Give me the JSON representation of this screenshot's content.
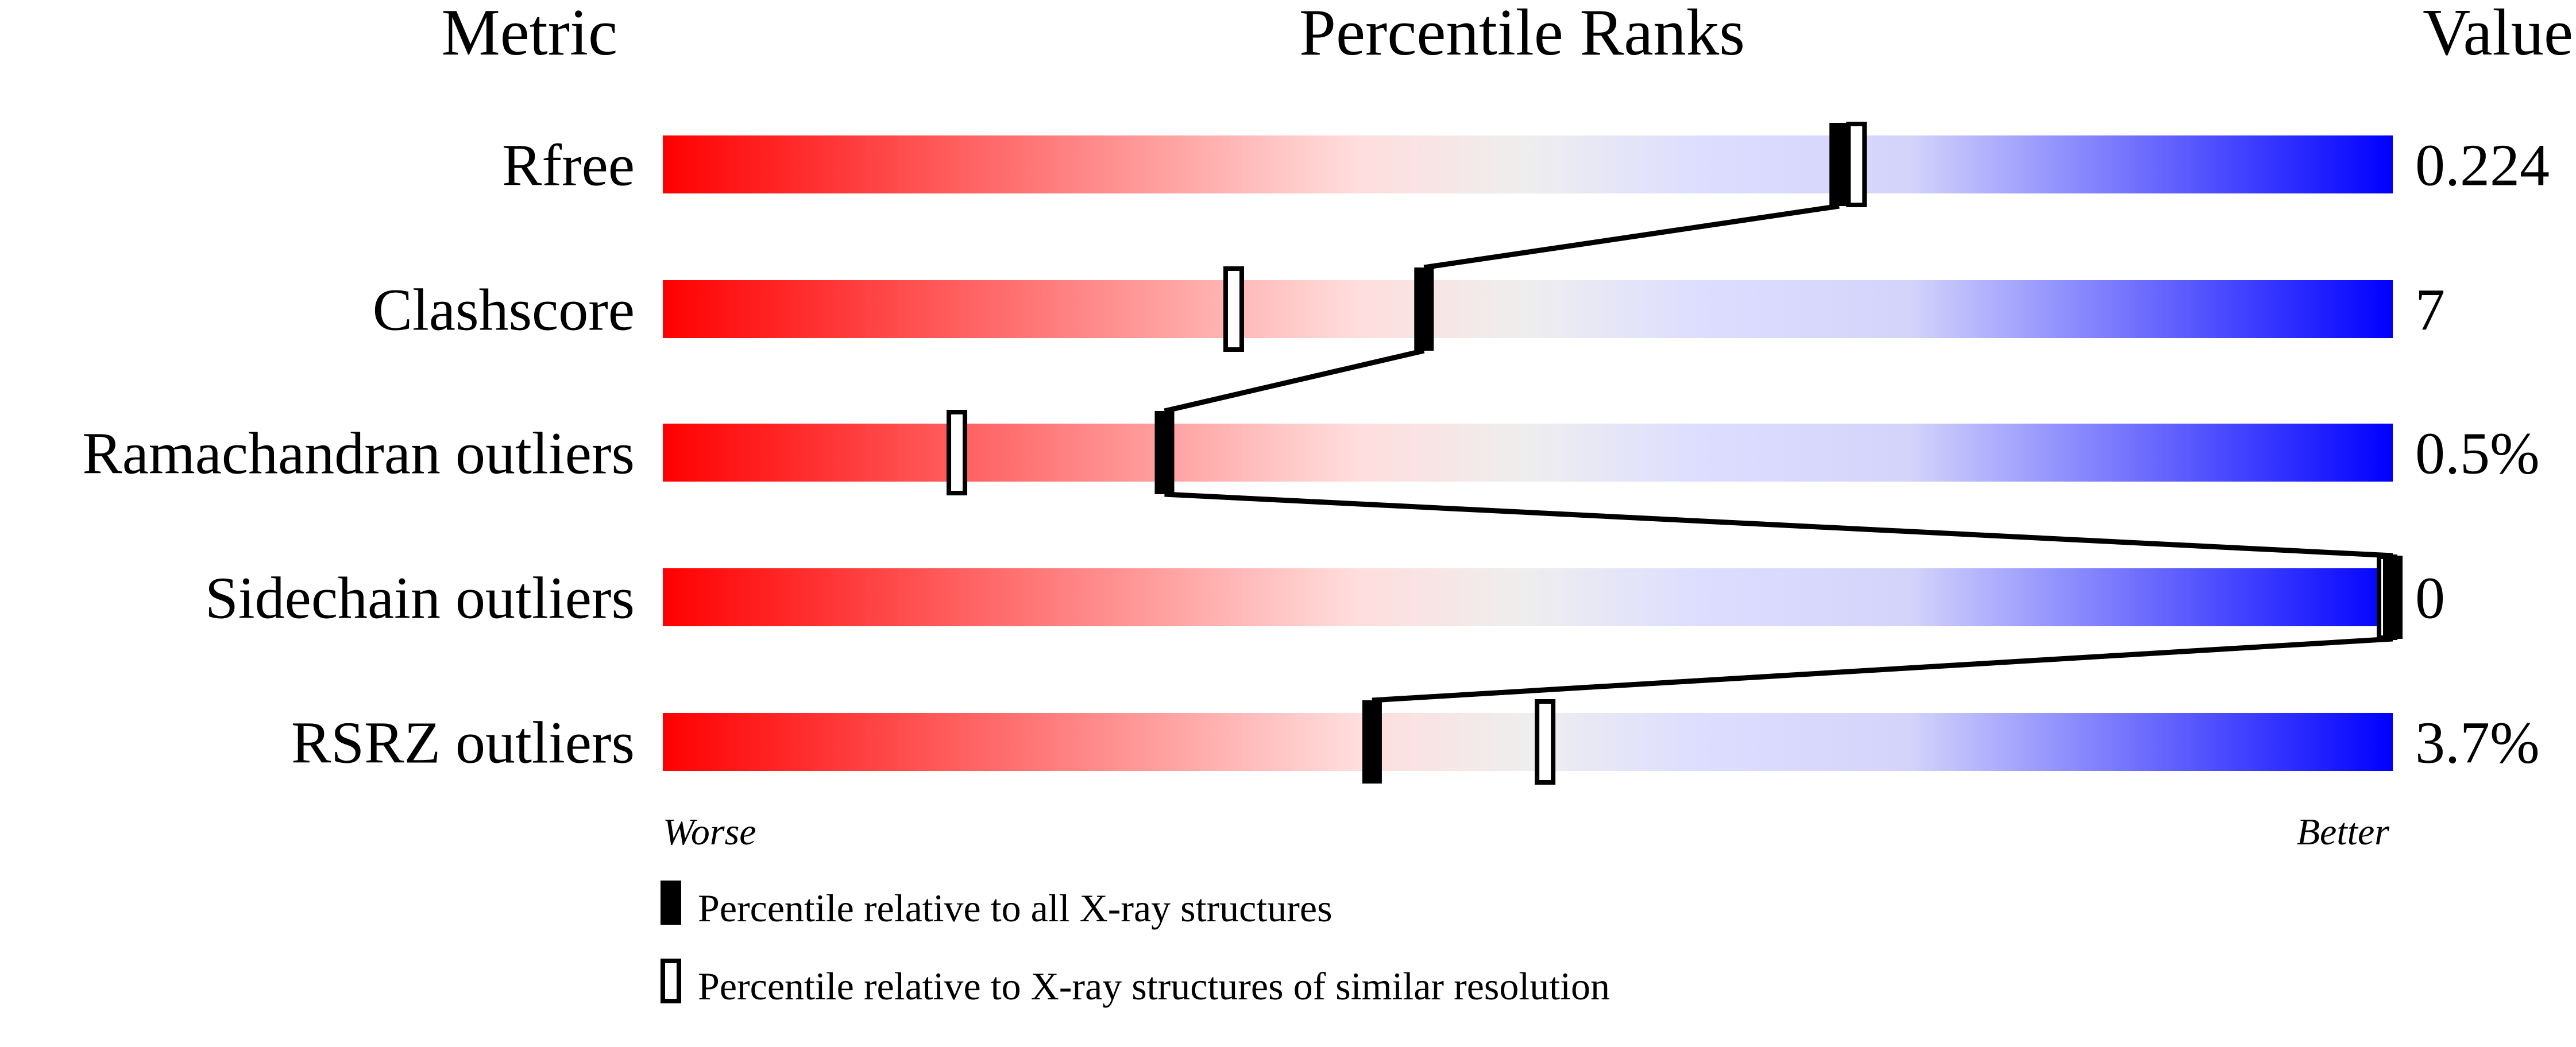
{
  "chart_data": {
    "type": "percentile-bar",
    "headers": {
      "metric": "Metric",
      "ranks": "Percentile Ranks",
      "value": "Value"
    },
    "xlim": [
      0,
      100
    ],
    "axis_labels": {
      "left": "Worse",
      "right": "Better"
    },
    "metrics": [
      {
        "label": "Rfree",
        "value": "0.224",
        "percentile_all": 68,
        "percentile_similar": 69
      },
      {
        "label": "Clashscore",
        "value": "7",
        "percentile_all": 44,
        "percentile_similar": 33
      },
      {
        "label": "Ramachandran outliers",
        "value": "0.5%",
        "percentile_all": 29,
        "percentile_similar": 17
      },
      {
        "label": "Sidechain outliers",
        "value": "0",
        "percentile_all": 100,
        "percentile_similar": 100
      },
      {
        "label": "RSRZ outliers",
        "value": "3.7%",
        "percentile_all": 41,
        "percentile_similar": 51
      }
    ],
    "legend": {
      "all": "Percentile relative to all X-ray structures",
      "similar": "Percentile relative to X-ray structures of similar resolution"
    },
    "colors": {
      "worse": "#ff0000",
      "middle": "#eeeeee",
      "better": "#0000ff",
      "marker": "#000000"
    }
  }
}
